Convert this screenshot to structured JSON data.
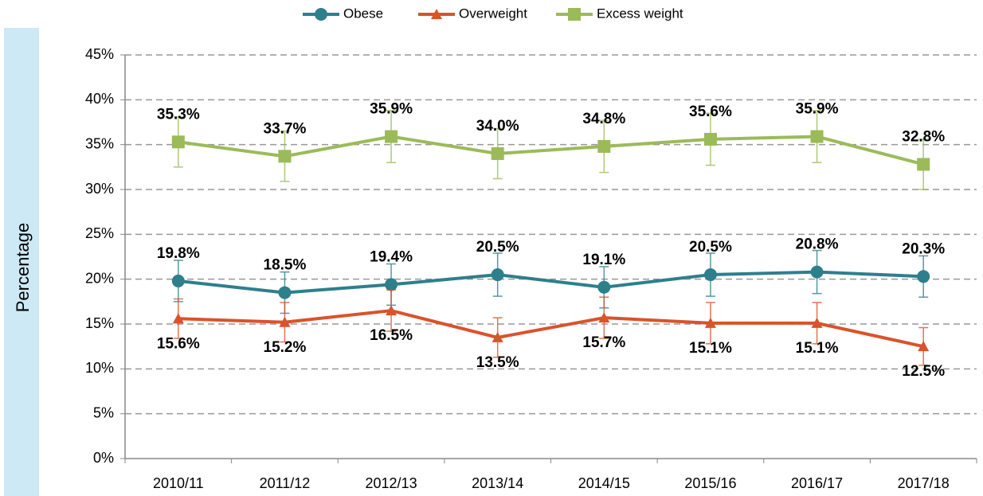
{
  "chart_data": {
    "type": "line",
    "y_label": "Percentage",
    "categories": [
      "2010/11",
      "2011/12",
      "2012/13",
      "2013/14",
      "2014/15",
      "2015/16",
      "2016/17",
      "2017/18"
    ],
    "series": [
      {
        "name": "Obese",
        "color": "#2e7f8c",
        "marker": "circle",
        "label_position": "above",
        "values": [
          19.8,
          18.5,
          19.4,
          20.5,
          19.1,
          20.5,
          20.8,
          20.3
        ],
        "value_labels": [
          "19.8%",
          "18.5%",
          "19.4%",
          "20.5%",
          "19.1%",
          "20.5%",
          "20.8%",
          "20.3%"
        ],
        "errors": [
          2.3,
          2.3,
          2.3,
          2.4,
          2.3,
          2.4,
          2.4,
          2.3
        ]
      },
      {
        "name": "Overweight",
        "color": "#d9532b",
        "marker": "triangle",
        "label_position": "below",
        "values": [
          15.6,
          15.2,
          16.5,
          13.5,
          15.7,
          15.1,
          15.1,
          12.5
        ],
        "value_labels": [
          "15.6%",
          "15.2%",
          "16.5%",
          "13.5%",
          "15.7%",
          "15.1%",
          "15.1%",
          "12.5%"
        ],
        "errors": [
          2.2,
          2.2,
          2.3,
          2.2,
          2.3,
          2.3,
          2.3,
          2.1
        ]
      },
      {
        "name": "Excess weight",
        "color": "#9bbb59",
        "marker": "square",
        "label_position": "above",
        "values": [
          35.3,
          33.7,
          35.9,
          34.0,
          34.8,
          35.6,
          35.9,
          32.8
        ],
        "value_labels": [
          "35.3%",
          "33.7%",
          "35.9%",
          "34.0%",
          "34.8%",
          "35.6%",
          "35.9%",
          "32.8%"
        ],
        "errors": [
          2.8,
          2.8,
          2.9,
          2.8,
          2.9,
          2.9,
          2.9,
          2.8
        ]
      }
    ],
    "ylim": [
      0,
      45
    ],
    "yticks": [
      {
        "value": 0,
        "label": "0%"
      },
      {
        "value": 5,
        "label": "5%"
      },
      {
        "value": 10,
        "label": "10%"
      },
      {
        "value": 15,
        "label": "15%"
      },
      {
        "value": 20,
        "label": "20%"
      },
      {
        "value": 25,
        "label": "25%"
      },
      {
        "value": 30,
        "label": "30%"
      },
      {
        "value": 35,
        "label": "35%"
      },
      {
        "value": 40,
        "label": "40%"
      },
      {
        "value": 45,
        "label": "45%"
      }
    ],
    "grid": true,
    "legend": "top"
  }
}
